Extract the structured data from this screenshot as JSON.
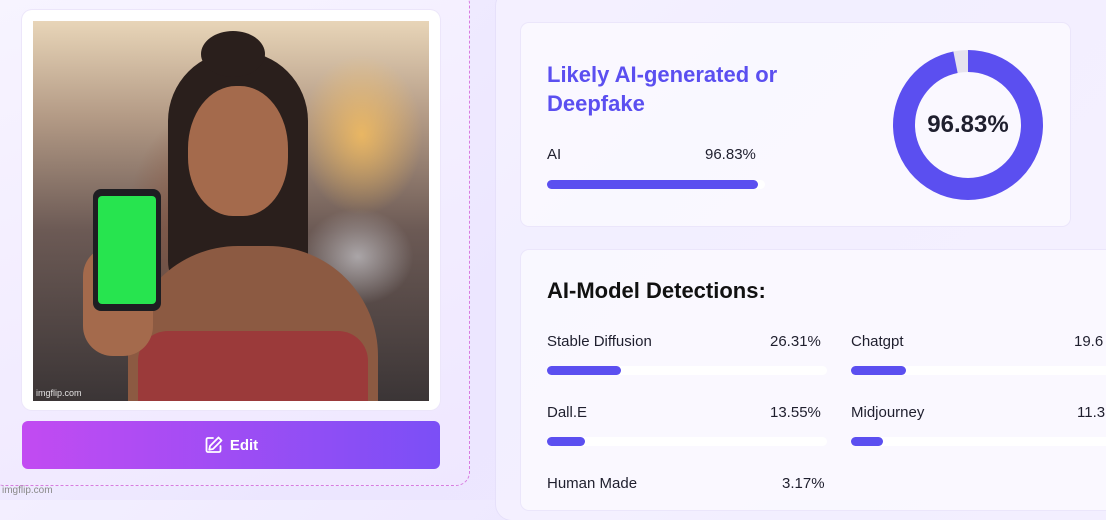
{
  "image_panel": {
    "watermark": "imgflip.com",
    "edit_label": "Edit"
  },
  "corner_watermark": "imgflip.com",
  "summary": {
    "title": "Likely AI-generated or Deepfake",
    "ai_label": "AI",
    "ai_value": "96.83%",
    "ai_fraction": 0.9683,
    "donut_label": "96.83%",
    "accent_color": "#5b4ff0"
  },
  "detections": {
    "title": "AI-Model Detections:",
    "items": [
      {
        "label": "Stable Diffusion",
        "value": "26.31%",
        "fraction": 0.2631
      },
      {
        "label": "Chatgpt",
        "value": "19.6",
        "fraction": 0.196
      },
      {
        "label": "Dall.E",
        "value": "13.55%",
        "fraction": 0.1355
      },
      {
        "label": "Midjourney",
        "value": "11.3",
        "fraction": 0.113
      },
      {
        "label": "Human Made",
        "value": "3.17%",
        "fraction": 0.0317
      }
    ]
  }
}
